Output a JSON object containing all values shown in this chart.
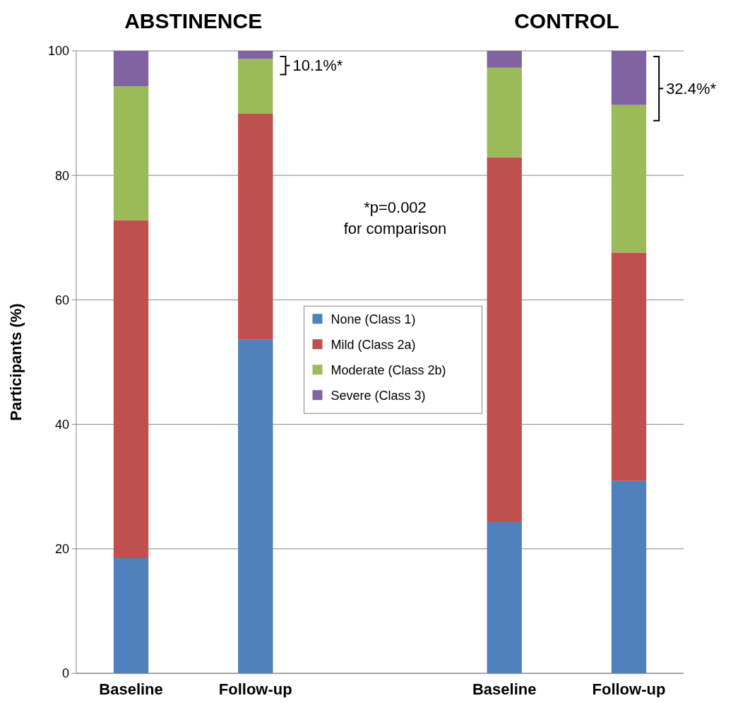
{
  "chart_data": {
    "type": "bar",
    "stacked": true,
    "ylabel": "Participants (%)",
    "categories": [
      "Baseline",
      "Follow-up",
      null,
      "Baseline",
      "Follow-up"
    ],
    "series": [
      {
        "name": "None (Class 1)",
        "color": "#4f81bd",
        "values": [
          18.5,
          53.6,
          null,
          24.3,
          30.9
        ]
      },
      {
        "name": "Mild (Class 2a)",
        "color": "#c0504d",
        "values": [
          54.3,
          36.3,
          null,
          58.6,
          36.7
        ]
      },
      {
        "name": "Moderate (Class 2b)",
        "color": "#9bbb59",
        "values": [
          21.5,
          8.8,
          null,
          14.4,
          23.7
        ]
      },
      {
        "name": "Severe (Class 3)",
        "color": "#8064a2",
        "values": [
          5.7,
          1.3,
          null,
          2.7,
          8.7
        ]
      }
    ],
    "ylim": [
      0,
      100
    ],
    "yticks": [
      0,
      20,
      40,
      60,
      80,
      100
    ],
    "grid": "y",
    "legend": "center",
    "annotations": [
      "ABSTINENCE",
      "CONTROL",
      "10.1%*",
      "32.4%*",
      "*p=0.002",
      "for comparison"
    ]
  }
}
